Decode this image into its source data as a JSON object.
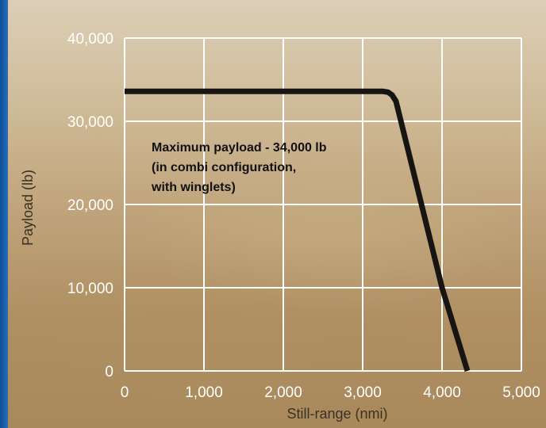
{
  "chart_data": {
    "type": "line",
    "title": "",
    "xlabel": "Still-range (nmi)",
    "ylabel": "Payload (lb)",
    "xlim": [
      0,
      5000
    ],
    "ylim": [
      0,
      40000
    ],
    "x_ticks": [
      0,
      1000,
      2000,
      3000,
      4000,
      5000
    ],
    "x_tick_labels": [
      "0",
      "1,000",
      "2,000",
      "3,000",
      "4,000",
      "5,000"
    ],
    "y_ticks": [
      0,
      10000,
      20000,
      30000,
      40000
    ],
    "y_tick_labels": [
      "0",
      "10,000",
      "20,000",
      "30,000",
      "40,000"
    ],
    "grid": true,
    "series": [
      {
        "x": [
          0,
          3250,
          3320,
          3370,
          3420,
          4000,
          4320
        ],
        "y": [
          33600,
          33600,
          33500,
          33150,
          32400,
          10000,
          0
        ]
      }
    ],
    "annotation": {
      "lines": [
        "Maximum payload - 34,000 lb",
        "(in combi configuration,",
        "with winglets)"
      ]
    },
    "colors": {
      "line": "#171512",
      "grid": "#ffffff",
      "tick_labels": "#ffffff",
      "axis_titles": "#3a3122",
      "side_band": "#0a4f9a"
    }
  }
}
